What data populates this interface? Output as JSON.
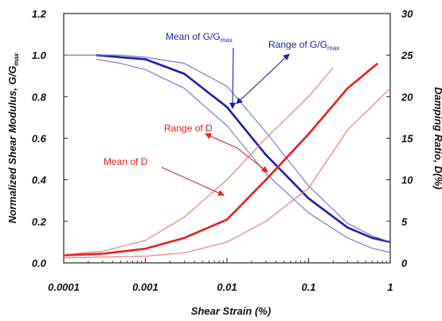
{
  "chart_data": {
    "type": "line",
    "title": "",
    "xlabel": "Shear Strain (%)",
    "ylabel_left": {
      "text": "Normalized Shear Modulus, G/G",
      "sub": "max"
    },
    "ylabel_right": "Damping Ratio, D(%)",
    "xscale": "log",
    "xlim": [
      0.0001,
      1
    ],
    "ylim_left": [
      0,
      1.2
    ],
    "ylim_right": [
      0,
      30
    ],
    "grid": false,
    "x_ticks": [
      "0.0001",
      "0.001",
      "0.01",
      "0.1",
      "1"
    ],
    "y_ticks_left": [
      "0.0",
      "0.2",
      "0.4",
      "0.6",
      "0.8",
      "1.0",
      "1.2"
    ],
    "y_ticks_right": [
      "0",
      "5",
      "10",
      "15",
      "20",
      "25",
      "30"
    ],
    "colors": {
      "modulus": "#1f1fa8",
      "modulus_range": "#6f6fd8",
      "damping": "#e8201a",
      "damping_range": "#f07070"
    },
    "series": [
      {
        "id": "g_mean",
        "axis": "left",
        "style": "bold",
        "color": "#1f1fa8",
        "x": [
          0.00025,
          0.0005,
          0.001,
          0.003,
          0.01,
          0.03,
          0.1,
          0.3,
          0.6,
          1
        ],
        "y": [
          1.0,
          0.99,
          0.98,
          0.91,
          0.75,
          0.52,
          0.31,
          0.17,
          0.12,
          0.1
        ]
      },
      {
        "id": "g_range_upper",
        "axis": "left",
        "style": "thin",
        "color": "#6f6fd8",
        "x": [
          0.0001,
          0.00025,
          0.0005,
          0.001,
          0.003,
          0.01,
          0.03,
          0.1,
          0.3,
          0.6,
          1
        ],
        "y": [
          1.0,
          1.0,
          1.0,
          0.99,
          0.96,
          0.85,
          0.63,
          0.37,
          0.19,
          0.13,
          0.1
        ]
      },
      {
        "id": "g_range_lower",
        "axis": "left",
        "style": "thin",
        "color": "#6f6fd8",
        "x": [
          0.00025,
          0.0005,
          0.001,
          0.003,
          0.01,
          0.03,
          0.1,
          0.3,
          0.6,
          1
        ],
        "y": [
          0.98,
          0.96,
          0.93,
          0.84,
          0.66,
          0.43,
          0.24,
          0.12,
          0.07,
          0.05
        ]
      },
      {
        "id": "d_mean",
        "axis": "right",
        "style": "bold",
        "color": "#e8201a",
        "x": [
          0.0001,
          0.0003,
          0.001,
          0.003,
          0.01,
          0.03,
          0.1,
          0.3,
          0.7
        ],
        "y": [
          0.9,
          1.1,
          1.7,
          3.0,
          5.2,
          10.0,
          15.5,
          21.0,
          24.0
        ]
      },
      {
        "id": "d_range_upper",
        "axis": "right",
        "style": "thin",
        "color": "#f07070",
        "x": [
          0.0001,
          0.0003,
          0.001,
          0.003,
          0.01,
          0.03,
          0.1,
          0.2
        ],
        "y": [
          1.0,
          1.4,
          2.7,
          5.5,
          10.0,
          15.0,
          20.0,
          23.5
        ]
      },
      {
        "id": "d_range_lower",
        "axis": "right",
        "style": "thin",
        "color": "#f07070",
        "x": [
          0.0001,
          0.001,
          0.003,
          0.01,
          0.03,
          0.1,
          0.3,
          1
        ],
        "y": [
          0.6,
          0.8,
          1.2,
          2.5,
          5.0,
          9.0,
          16.0,
          21.0
        ]
      }
    ],
    "annotations": [
      {
        "id": "ann-mean-g",
        "text": "Mean of G/G",
        "sub": "max",
        "color": "#1f1fa8"
      },
      {
        "id": "ann-range-g",
        "text": "Range of G/G",
        "sub": "max",
        "color": "#1f1fa8"
      },
      {
        "id": "ann-range-d",
        "text": "Range of D",
        "sub": "",
        "color": "#e8201a"
      },
      {
        "id": "ann-mean-d",
        "text": "Mean of D",
        "sub": "",
        "color": "#e8201a"
      }
    ]
  }
}
